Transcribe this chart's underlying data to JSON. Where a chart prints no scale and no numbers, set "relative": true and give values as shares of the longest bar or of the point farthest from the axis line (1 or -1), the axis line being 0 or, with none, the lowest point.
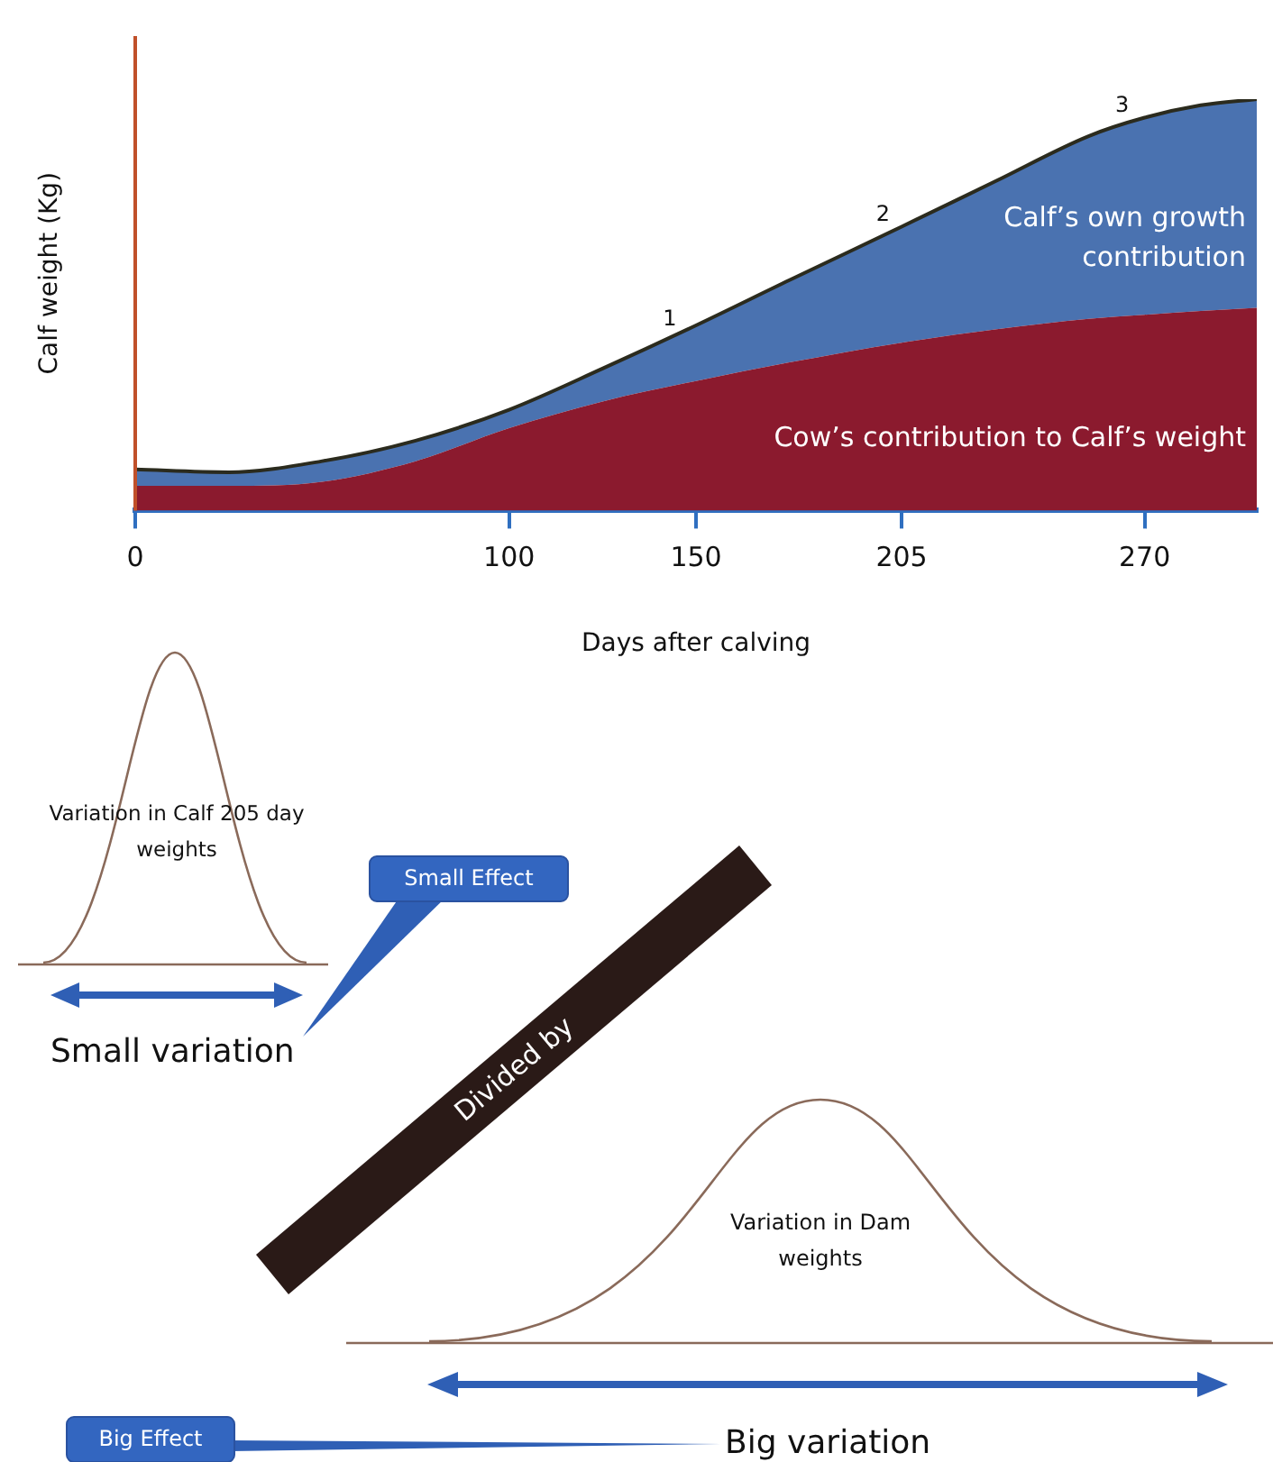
{
  "chart_data": [
    {
      "type": "area",
      "stacked": true,
      "relative": true,
      "xlabel": "Days after calving",
      "ylabel": "Calf weight (Kg)",
      "xlim": [
        0,
        300
      ],
      "xticks": [
        0,
        100,
        150,
        205,
        270
      ],
      "grid": false,
      "legend": false,
      "x": [
        0,
        25,
        50,
        75,
        100,
        125,
        150,
        175,
        205,
        230,
        255,
        270,
        285,
        300
      ],
      "series": [
        {
          "name": "Cow’s contribution to Calf’s weight",
          "color": "#8b1a2e",
          "values": [
            0.06,
            0.06,
            0.07,
            0.12,
            0.2,
            0.265,
            0.315,
            0.36,
            0.408,
            0.44,
            0.466,
            0.476,
            0.485,
            0.493
          ]
        },
        {
          "name": "Calf’s own growth contribution",
          "color": "#4a72b0",
          "values": [
            0.04,
            0.033,
            0.05,
            0.05,
            0.045,
            0.08,
            0.135,
            0.2,
            0.282,
            0.36,
            0.444,
            0.479,
            0.5,
            0.507
          ]
        }
      ],
      "annotations": [
        {
          "text": "1",
          "x": 143,
          "y": 0.42
        },
        {
          "text": "2",
          "x": 200,
          "y": 0.675
        },
        {
          "text": "3",
          "x": 264,
          "y": 0.94
        }
      ]
    },
    {
      "type": "other",
      "annotations": [
        "Variation in Calf 205 day weights",
        "Small Effect",
        "Small variation",
        "Divided by",
        "Variation in Dam weights",
        "Big Effect",
        "Big variation"
      ]
    }
  ]
}
